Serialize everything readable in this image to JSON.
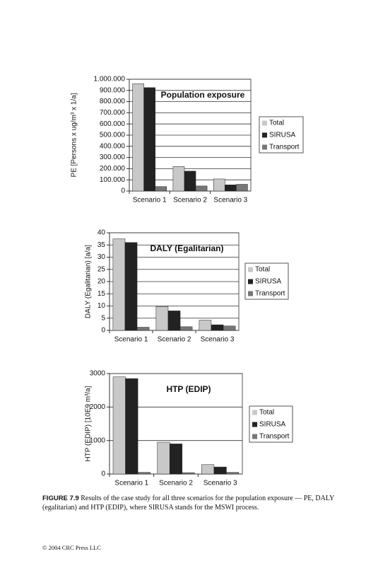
{
  "chart_data": [
    {
      "type": "bar",
      "title": "Population exposure",
      "y_label": "PE [Persons x ug/m³ x 1/a]",
      "categories": [
        "Scenario 1",
        "Scenario 2",
        "Scenario 3"
      ],
      "series": [
        {
          "name": "Total",
          "color": "#c8c8c8",
          "values": [
            960000,
            220000,
            108000
          ]
        },
        {
          "name": "SIRUSA",
          "color": "#222222",
          "values": [
            925000,
            178000,
            55000
          ]
        },
        {
          "name": "Transport",
          "color": "#777777",
          "values": [
            40000,
            45000,
            60000
          ]
        }
      ],
      "ylim": [
        0,
        1000000
      ],
      "yticks": [
        0,
        {
          "value": 100000,
          "label": "100.000"
        },
        {
          "value": 200000,
          "label": "200.000"
        },
        {
          "value": 300000,
          "label": "300.000"
        },
        {
          "value": 400000,
          "label": "400.000"
        },
        {
          "value": 500000,
          "label": "500.000"
        },
        {
          "value": 600000,
          "label": "600.000"
        },
        {
          "value": 700000,
          "label": "700.000"
        },
        {
          "value": 800000,
          "label": "800.000"
        },
        {
          "value": 900000,
          "label": "900.000"
        },
        {
          "value": 1000000,
          "label": "1.000.000"
        }
      ],
      "grid": true,
      "legend": "right"
    },
    {
      "type": "bar",
      "title": "DALY (Egalitarian)",
      "y_label": "DALY (Egalitarian) [a/a]",
      "categories": [
        "Scenario 1",
        "Scenario 2",
        "Scenario 3"
      ],
      "series": [
        {
          "name": "Total",
          "color": "#c8c8c8",
          "values": [
            37.5,
            9.8,
            4.2
          ]
        },
        {
          "name": "SIRUSA",
          "color": "#222222",
          "values": [
            36,
            8,
            2.3
          ]
        },
        {
          "name": "Transport",
          "color": "#777777",
          "values": [
            1.3,
            1.5,
            1.8
          ]
        }
      ],
      "ylim": [
        0,
        40
      ],
      "yticks": [
        0,
        5,
        10,
        15,
        20,
        25,
        30,
        35,
        40
      ],
      "grid": true,
      "legend": "right"
    },
    {
      "type": "bar",
      "title": "HTP (EDIP)",
      "y_label": "HTP (EDIP) [10E9 m³/a]",
      "categories": [
        "Scenario 1",
        "Scenario 2",
        "Scenario 3"
      ],
      "series": [
        {
          "name": "Total",
          "color": "#c8c8c8",
          "values": [
            2900,
            950,
            280
          ]
        },
        {
          "name": "SIRUSA",
          "color": "#222222",
          "values": [
            2850,
            900,
            210
          ]
        },
        {
          "name": "Transport",
          "color": "#777777",
          "values": [
            50,
            40,
            50
          ]
        }
      ],
      "ylim": [
        0,
        3000
      ],
      "yticks": [
        0,
        1000,
        2000,
        3000
      ],
      "grid": true,
      "legend": "right"
    }
  ],
  "caption": {
    "label": "FIGURE 7.9",
    "text": "Results of the case study for all three scenarios for the population exposure — PE, DALY (egalitarian) and HTP (EDIP), where SIRUSA stands for the MSWI process."
  },
  "footer": "© 2004 CRC Press LLC"
}
